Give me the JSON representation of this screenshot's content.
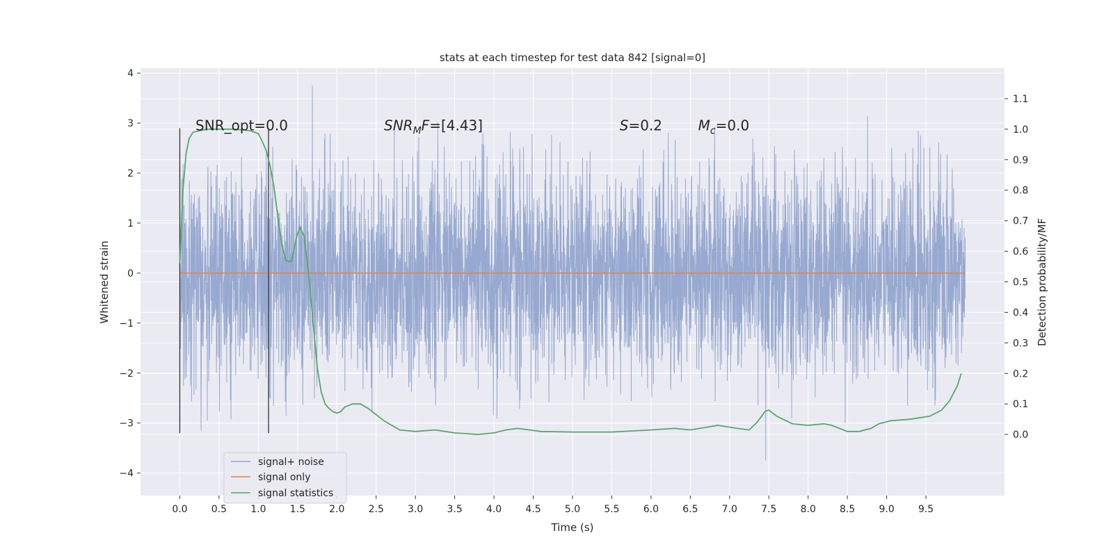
{
  "chart_data": {
    "type": "line",
    "title": "stats at each timestep for test data 842 [signal=0]",
    "xlabel": "Time (s)",
    "ylabel": "Whitened strain",
    "y2label": "Detection probability/MF",
    "xlim": [
      -0.5,
      10.5
    ],
    "ylim": [
      -4.45,
      4.1
    ],
    "y2lim": [
      -0.2,
      1.2
    ],
    "x_ticks": [
      "0.0",
      "0.5",
      "1.0",
      "1.5",
      "2.0",
      "2.5",
      "3.0",
      "3.5",
      "4.0",
      "4.5",
      "5.0",
      "5.5",
      "6.0",
      "6.5",
      "7.0",
      "7.5",
      "8.0",
      "8.5",
      "9.0",
      "9.5"
    ],
    "y_ticks": [
      "4",
      "3",
      "2",
      "1",
      "0",
      "−1",
      "−2",
      "−3",
      "−4"
    ],
    "y2_ticks": [
      "1.1",
      "1.0",
      "0.9",
      "0.8",
      "0.7",
      "0.6",
      "0.5",
      "0.4",
      "0.3",
      "0.2",
      "0.1",
      "0.0"
    ],
    "grid": true,
    "legend_position": "lower-left",
    "colors": {
      "noise": "#8ea2cc",
      "signal": "#dd8452",
      "stats": "#55a868",
      "axes_bg": "#eaeaf2",
      "grid": "#ffffff",
      "vline": "#333333"
    },
    "series": [
      {
        "name": "signal+ noise",
        "role": "noise",
        "x_range": [
          0,
          10
        ],
        "amplitude_sigma": 1.0,
        "approx_extremes": [
          3.75,
          -3.6
        ]
      },
      {
        "name": "signal only",
        "role": "signal",
        "x": [
          0,
          10
        ],
        "y": [
          0,
          0
        ]
      },
      {
        "name": "signal statistics",
        "role": "stats",
        "axis": "right",
        "x": [
          0.0,
          0.04,
          0.08,
          0.12,
          0.17,
          0.25,
          0.35,
          0.5,
          0.7,
          0.9,
          1.0,
          1.05,
          1.1,
          1.15,
          1.2,
          1.25,
          1.3,
          1.35,
          1.42,
          1.48,
          1.53,
          1.58,
          1.64,
          1.7,
          1.75,
          1.8,
          1.85,
          1.9,
          1.95,
          2.0,
          2.05,
          2.1,
          2.2,
          2.3,
          2.4,
          2.6,
          2.8,
          3.0,
          3.25,
          3.5,
          3.8,
          4.0,
          4.15,
          4.3,
          4.6,
          5.0,
          5.5,
          6.0,
          6.3,
          6.5,
          6.85,
          7.1,
          7.25,
          7.35,
          7.45,
          7.5,
          7.6,
          7.8,
          8.0,
          8.2,
          8.3,
          8.5,
          8.65,
          8.8,
          8.9,
          9.05,
          9.3,
          9.55,
          9.7,
          9.8,
          9.9,
          9.95
        ],
        "y": [
          0.56,
          0.8,
          0.92,
          0.97,
          0.99,
          0.995,
          1.0,
          1.0,
          1.0,
          0.995,
          0.985,
          0.96,
          0.93,
          0.88,
          0.81,
          0.71,
          0.62,
          0.57,
          0.565,
          0.64,
          0.68,
          0.65,
          0.53,
          0.36,
          0.22,
          0.14,
          0.1,
          0.085,
          0.075,
          0.07,
          0.075,
          0.09,
          0.1,
          0.1,
          0.085,
          0.045,
          0.015,
          0.01,
          0.015,
          0.005,
          0.0,
          0.005,
          0.015,
          0.02,
          0.01,
          0.008,
          0.008,
          0.015,
          0.02,
          0.015,
          0.03,
          0.02,
          0.015,
          0.04,
          0.075,
          0.08,
          0.06,
          0.035,
          0.03,
          0.035,
          0.03,
          0.01,
          0.01,
          0.02,
          0.035,
          0.045,
          0.05,
          0.06,
          0.08,
          0.11,
          0.16,
          0.2
        ]
      }
    ],
    "vlines": [
      {
        "x": 0.0,
        "y_from": -3.2,
        "y_to": 2.9
      },
      {
        "x": 1.13,
        "y_from": -3.2,
        "y_to": 2.9
      }
    ],
    "annotations": [
      {
        "text": "SNR_opt=0.0",
        "x": 0.2,
        "y": 2.95,
        "math": false
      },
      {
        "text": "SNR",
        "sub": "M",
        "suffix": "F=[4.43]",
        "x": 2.6,
        "y": 2.95,
        "math": true
      },
      {
        "text": "S",
        "sub": "",
        "suffix": "=0.2",
        "x": 5.6,
        "y": 2.95,
        "math": true
      },
      {
        "text": "M",
        "sub": "c",
        "suffix": "=0.0",
        "x": 6.6,
        "y": 2.95,
        "math": true
      }
    ]
  }
}
